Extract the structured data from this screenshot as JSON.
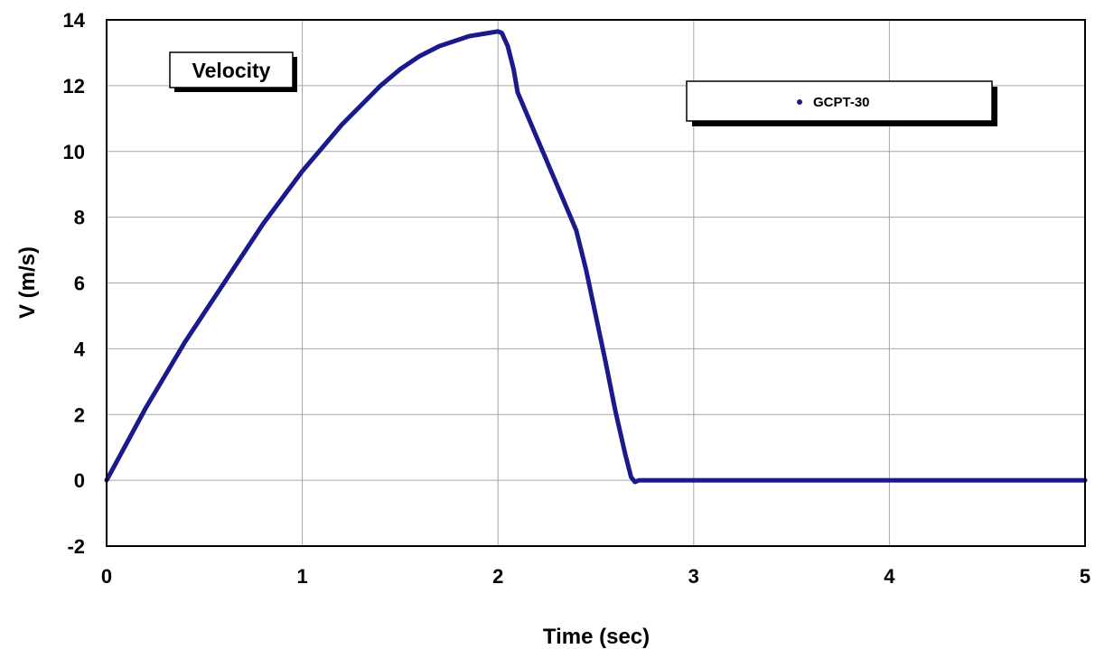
{
  "chart_data": {
    "type": "line",
    "title": "Velocity",
    "xlabel": "Time (sec)",
    "ylabel": "V (m/s)",
    "xlim": [
      0,
      5
    ],
    "ylim": [
      -2,
      14
    ],
    "x_ticks": [
      "0",
      "1",
      "2",
      "3",
      "4",
      "5"
    ],
    "y_ticks": [
      "-2",
      "0",
      "2",
      "4",
      "6",
      "8",
      "10",
      "12",
      "14"
    ],
    "grid": true,
    "legend_position": "top-right",
    "line_color": "#1a1a8c",
    "series": [
      {
        "name": "GCPT-30",
        "x": [
          0,
          0.1,
          0.2,
          0.3,
          0.4,
          0.5,
          0.6,
          0.7,
          0.8,
          0.9,
          1.0,
          1.1,
          1.2,
          1.3,
          1.4,
          1.5,
          1.6,
          1.7,
          1.8,
          1.85,
          1.9,
          1.95,
          2.0,
          2.02,
          2.05,
          2.08,
          2.1,
          2.15,
          2.2,
          2.3,
          2.4,
          2.45,
          2.5,
          2.55,
          2.6,
          2.65,
          2.68,
          2.7,
          2.72,
          2.75,
          3.0,
          3.5,
          4.0,
          4.5,
          5.0
        ],
        "values": [
          0,
          1.1,
          2.2,
          3.2,
          4.2,
          5.1,
          6.0,
          6.9,
          7.8,
          8.6,
          9.4,
          10.1,
          10.8,
          11.4,
          12.0,
          12.5,
          12.9,
          13.2,
          13.4,
          13.5,
          13.55,
          13.6,
          13.65,
          13.6,
          13.2,
          12.5,
          11.8,
          11.1,
          10.4,
          9.0,
          7.6,
          6.4,
          5.0,
          3.6,
          2.1,
          0.8,
          0.1,
          -0.05,
          0,
          0,
          0,
          0,
          0,
          0,
          0
        ]
      }
    ]
  }
}
